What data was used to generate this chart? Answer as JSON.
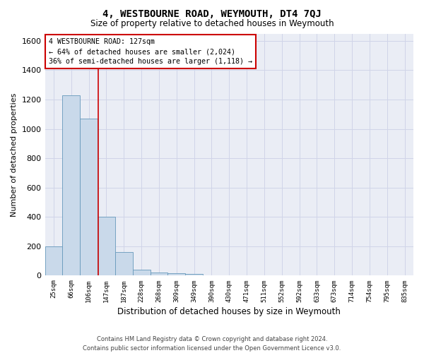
{
  "title": "4, WESTBOURNE ROAD, WEYMOUTH, DT4 7QJ",
  "subtitle": "Size of property relative to detached houses in Weymouth",
  "xlabel": "Distribution of detached houses by size in Weymouth",
  "ylabel": "Number of detached properties",
  "footer_line1": "Contains HM Land Registry data © Crown copyright and database right 2024.",
  "footer_line2": "Contains public sector information licensed under the Open Government Licence v3.0.",
  "bin_labels": [
    "25sqm",
    "66sqm",
    "106sqm",
    "147sqm",
    "187sqm",
    "228sqm",
    "268sqm",
    "309sqm",
    "349sqm",
    "390sqm",
    "430sqm",
    "471sqm",
    "511sqm",
    "552sqm",
    "592sqm",
    "633sqm",
    "673sqm",
    "714sqm",
    "754sqm",
    "795sqm",
    "835sqm"
  ],
  "bar_values": [
    200,
    1230,
    1070,
    400,
    160,
    40,
    20,
    15,
    10,
    0,
    0,
    0,
    0,
    0,
    0,
    0,
    0,
    0,
    0,
    0,
    0
  ],
  "bar_color": "#c9d9ea",
  "bar_edge_color": "#6699bb",
  "grid_color": "#d0d4e8",
  "background_color": "#eaedf5",
  "property_line_color": "#cc0000",
  "annotation_text": "4 WESTBOURNE ROAD: 127sqm\n← 64% of detached houses are smaller (2,024)\n36% of semi-detached houses are larger (1,118) →",
  "annotation_box_color": "#cc0000",
  "ylim": [
    0,
    1650
  ],
  "property_line_x": 2.52,
  "yticks": [
    0,
    200,
    400,
    600,
    800,
    1000,
    1200,
    1400,
    1600
  ]
}
